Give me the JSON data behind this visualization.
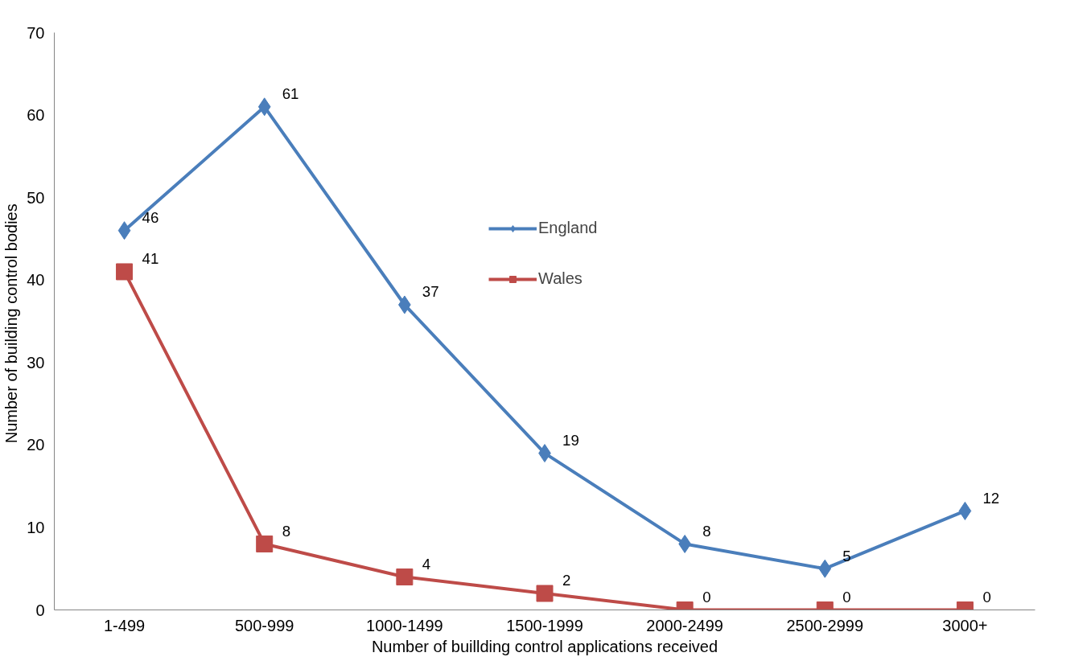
{
  "chart_data": {
    "type": "line",
    "xlabel": "Number of buillding control applications received",
    "ylabel": "Number  of building control bodies",
    "categories": [
      "1-499",
      "500-999",
      "1000-1499",
      "1500-1999",
      "2000-2499",
      "2500-2999",
      "3000+"
    ],
    "series": [
      {
        "name": "England",
        "color": "#4a7ebb",
        "marker": "diamond",
        "values": [
          46,
          61,
          37,
          19,
          8,
          5,
          12
        ]
      },
      {
        "name": "Wales",
        "color": "#be4b48",
        "marker": "square",
        "values": [
          41,
          8,
          4,
          2,
          0,
          0,
          0
        ]
      }
    ],
    "ylim": [
      0,
      70
    ],
    "yticks": [
      0,
      10,
      20,
      30,
      40,
      50,
      60,
      70
    ],
    "data_labels": true,
    "grid": false,
    "legend": "top right",
    "line_style": "solid"
  }
}
